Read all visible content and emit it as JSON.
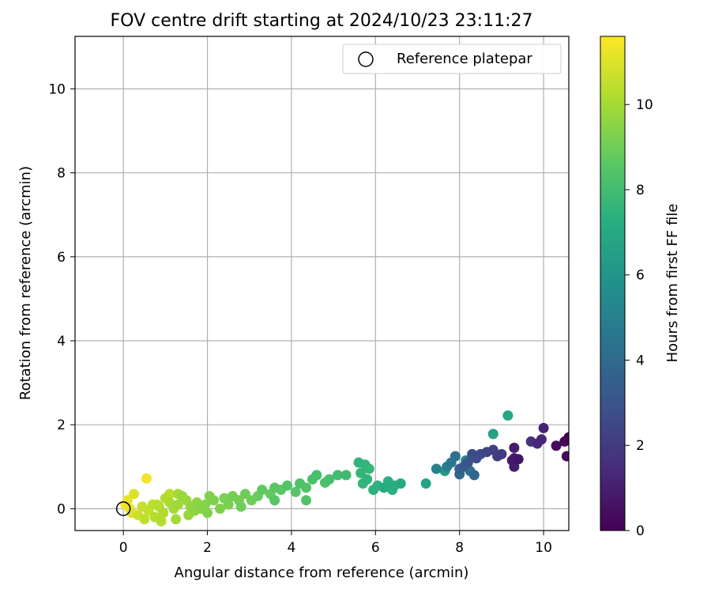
{
  "chart_data": {
    "type": "scatter",
    "title": "FOV centre drift starting at 2024/10/23 23:11:27",
    "xlabel": "Angular distance from reference (arcmin)",
    "ylabel": "Rotation from reference (arcmin)",
    "xlim": [
      -1.15,
      10.6
    ],
    "ylim": [
      -0.52,
      11.25
    ],
    "xticks": [
      "0",
      "2",
      "4",
      "6",
      "8",
      "10"
    ],
    "yticks": [
      "0",
      "2",
      "4",
      "6",
      "8",
      "10"
    ],
    "grid": true,
    "legend": {
      "position": "top-right",
      "label": "Reference platepar"
    },
    "reference_point": {
      "x": 0,
      "y": 0
    },
    "colorbar": {
      "label": "Hours from first FF file",
      "range": [
        0,
        11.6
      ],
      "ticks": [
        "0",
        "2",
        "4",
        "6",
        "8",
        "10"
      ],
      "colormap": "viridis"
    },
    "series": [
      {
        "points": [
          {
            "x": 10.6,
            "y": 1.7,
            "t": 0.1
          },
          {
            "x": 10.5,
            "y": 1.6,
            "t": 0.2
          },
          {
            "x": 10.55,
            "y": 1.25,
            "t": 0.3
          },
          {
            "x": 10.3,
            "y": 1.5,
            "t": 0.4
          },
          {
            "x": 10.0,
            "y": 1.92,
            "t": 1.1
          },
          {
            "x": 9.95,
            "y": 1.65,
            "t": 1.3
          },
          {
            "x": 9.85,
            "y": 1.55,
            "t": 1.4
          },
          {
            "x": 9.7,
            "y": 1.6,
            "t": 1.6
          },
          {
            "x": 9.3,
            "y": 1.45,
            "t": 0.9
          },
          {
            "x": 9.3,
            "y": 1.2,
            "t": 0.8
          },
          {
            "x": 9.25,
            "y": 1.15,
            "t": 1.0
          },
          {
            "x": 9.4,
            "y": 1.18,
            "t": 0.7
          },
          {
            "x": 9.3,
            "y": 1.0,
            "t": 0.9
          },
          {
            "x": 9.0,
            "y": 1.3,
            "t": 2.0
          },
          {
            "x": 8.8,
            "y": 1.4,
            "t": 2.2
          },
          {
            "x": 8.9,
            "y": 1.25,
            "t": 2.1
          },
          {
            "x": 8.65,
            "y": 1.35,
            "t": 2.4
          },
          {
            "x": 8.5,
            "y": 1.3,
            "t": 2.6
          },
          {
            "x": 8.4,
            "y": 1.2,
            "t": 2.8
          },
          {
            "x": 8.3,
            "y": 1.3,
            "t": 2.7
          },
          {
            "x": 8.2,
            "y": 1.1,
            "t": 3.0
          },
          {
            "x": 8.1,
            "y": 1.0,
            "t": 3.3
          },
          {
            "x": 8.0,
            "y": 0.95,
            "t": 3.5
          },
          {
            "x": 8.35,
            "y": 0.8,
            "t": 3.8
          },
          {
            "x": 8.0,
            "y": 0.82,
            "t": 3.9
          },
          {
            "x": 7.9,
            "y": 1.25,
            "t": 4.3
          },
          {
            "x": 7.8,
            "y": 1.1,
            "t": 4.6
          },
          {
            "x": 7.7,
            "y": 1.0,
            "t": 4.8
          },
          {
            "x": 7.45,
            "y": 0.95,
            "t": 5.1
          },
          {
            "x": 7.65,
            "y": 0.9,
            "t": 6.4
          },
          {
            "x": 8.15,
            "y": 1.15,
            "t": 5.4
          },
          {
            "x": 8.25,
            "y": 0.9,
            "t": 4.4
          },
          {
            "x": 9.15,
            "y": 2.22,
            "t": 6.9
          },
          {
            "x": 8.8,
            "y": 1.78,
            "t": 6.6
          },
          {
            "x": 7.2,
            "y": 0.6,
            "t": 6.8
          },
          {
            "x": 6.6,
            "y": 0.6,
            "t": 7.0
          },
          {
            "x": 6.45,
            "y": 0.55,
            "t": 7.2
          },
          {
            "x": 6.3,
            "y": 0.65,
            "t": 7.3
          },
          {
            "x": 6.2,
            "y": 0.5,
            "t": 7.1
          },
          {
            "x": 6.05,
            "y": 0.55,
            "t": 7.4
          },
          {
            "x": 5.95,
            "y": 0.45,
            "t": 7.4
          },
          {
            "x": 5.8,
            "y": 0.7,
            "t": 7.5
          },
          {
            "x": 5.7,
            "y": 0.6,
            "t": 7.6
          },
          {
            "x": 5.65,
            "y": 0.85,
            "t": 7.6
          },
          {
            "x": 5.6,
            "y": 1.1,
            "t": 7.5
          },
          {
            "x": 5.75,
            "y": 1.05,
            "t": 7.6
          },
          {
            "x": 5.85,
            "y": 0.95,
            "t": 7.7
          },
          {
            "x": 6.4,
            "y": 0.45,
            "t": 7.3
          },
          {
            "x": 5.3,
            "y": 0.8,
            "t": 7.9
          },
          {
            "x": 5.1,
            "y": 0.8,
            "t": 8.0
          },
          {
            "x": 4.9,
            "y": 0.7,
            "t": 8.1
          },
          {
            "x": 4.8,
            "y": 0.62,
            "t": 8.2
          },
          {
            "x": 4.6,
            "y": 0.8,
            "t": 8.1
          },
          {
            "x": 4.5,
            "y": 0.7,
            "t": 8.2
          },
          {
            "x": 4.35,
            "y": 0.5,
            "t": 8.4
          },
          {
            "x": 4.2,
            "y": 0.6,
            "t": 8.3
          },
          {
            "x": 4.1,
            "y": 0.4,
            "t": 8.5
          },
          {
            "x": 3.9,
            "y": 0.55,
            "t": 8.4
          },
          {
            "x": 3.75,
            "y": 0.45,
            "t": 8.6
          },
          {
            "x": 3.6,
            "y": 0.5,
            "t": 8.6
          },
          {
            "x": 3.5,
            "y": 0.35,
            "t": 8.8
          },
          {
            "x": 3.3,
            "y": 0.45,
            "t": 8.7
          },
          {
            "x": 3.2,
            "y": 0.3,
            "t": 8.9
          },
          {
            "x": 3.05,
            "y": 0.2,
            "t": 9.0
          },
          {
            "x": 2.9,
            "y": 0.35,
            "t": 9.0
          },
          {
            "x": 2.75,
            "y": 0.2,
            "t": 9.1
          },
          {
            "x": 2.6,
            "y": 0.3,
            "t": 9.1
          },
          {
            "x": 2.5,
            "y": 0.1,
            "t": 9.2
          },
          {
            "x": 2.4,
            "y": 0.25,
            "t": 9.2
          },
          {
            "x": 2.3,
            "y": 0.0,
            "t": 9.3
          },
          {
            "x": 2.15,
            "y": 0.2,
            "t": 9.3
          },
          {
            "x": 2.05,
            "y": 0.3,
            "t": 9.3
          },
          {
            "x": 1.95,
            "y": 0.1,
            "t": 9.4
          },
          {
            "x": 1.85,
            "y": 0.0,
            "t": 9.5
          },
          {
            "x": 4.35,
            "y": 0.2,
            "t": 8.4
          },
          {
            "x": 3.6,
            "y": 0.2,
            "t": 8.5
          },
          {
            "x": 2.8,
            "y": 0.05,
            "t": 9.0
          },
          {
            "x": 1.75,
            "y": 0.15,
            "t": 9.6
          },
          {
            "x": 1.6,
            "y": 0.05,
            "t": 9.7
          },
          {
            "x": 1.5,
            "y": 0.2,
            "t": 9.8
          },
          {
            "x": 1.4,
            "y": 0.3,
            "t": 9.8
          },
          {
            "x": 1.3,
            "y": 0.1,
            "t": 9.9
          },
          {
            "x": 1.2,
            "y": 0.0,
            "t": 10.0
          },
          {
            "x": 1.1,
            "y": 0.15,
            "t": 10.1
          },
          {
            "x": 1.0,
            "y": 0.25,
            "t": 10.2
          },
          {
            "x": 0.95,
            "y": -0.1,
            "t": 10.2
          },
          {
            "x": 0.85,
            "y": 0.05,
            "t": 10.3
          },
          {
            "x": 0.75,
            "y": -0.2,
            "t": 10.3
          },
          {
            "x": 0.7,
            "y": 0.1,
            "t": 10.4
          },
          {
            "x": 0.6,
            "y": -0.05,
            "t": 10.5
          },
          {
            "x": 0.5,
            "y": -0.25,
            "t": 10.5
          },
          {
            "x": 0.45,
            "y": 0.05,
            "t": 10.6
          },
          {
            "x": 0.35,
            "y": -0.15,
            "t": 10.7
          },
          {
            "x": 1.55,
            "y": -0.15,
            "t": 9.8
          },
          {
            "x": 1.25,
            "y": -0.25,
            "t": 10.0
          },
          {
            "x": 0.9,
            "y": -0.3,
            "t": 10.3
          },
          {
            "x": 2.0,
            "y": -0.1,
            "t": 9.4
          },
          {
            "x": 1.7,
            "y": -0.05,
            "t": 9.6
          },
          {
            "x": 0.25,
            "y": 0.35,
            "t": 11.0
          },
          {
            "x": 0.55,
            "y": 0.72,
            "t": 11.4
          },
          {
            "x": 0.1,
            "y": 0.2,
            "t": 11.2
          },
          {
            "x": 0.05,
            "y": 0.1,
            "t": 11.5
          },
          {
            "x": 0.15,
            "y": 0.0,
            "t": 11.3
          },
          {
            "x": 0.2,
            "y": -0.1,
            "t": 11.1
          },
          {
            "x": 1.1,
            "y": 0.35,
            "t": 10.4
          },
          {
            "x": 1.3,
            "y": 0.35,
            "t": 10.0
          },
          {
            "x": 0.8,
            "y": 0.1,
            "t": 10.6
          }
        ]
      }
    ]
  }
}
